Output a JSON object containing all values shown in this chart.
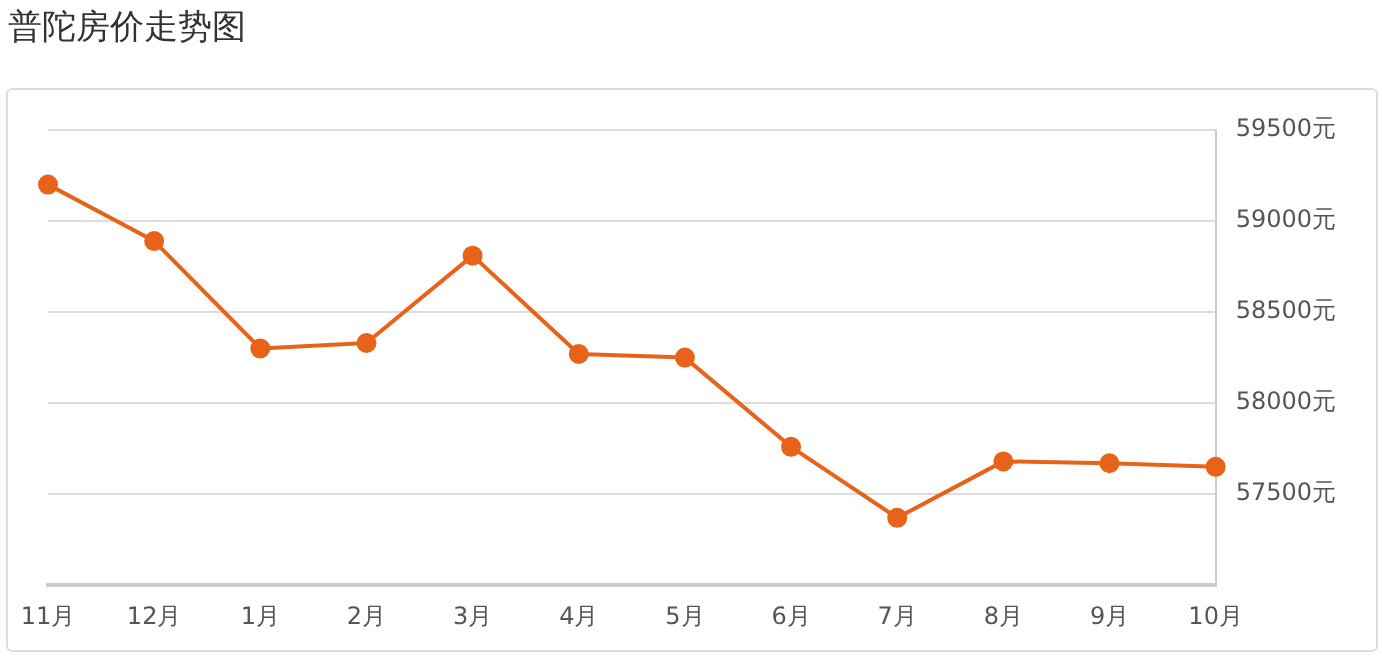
{
  "chart_data": {
    "type": "line",
    "title": "普陀房价走势图",
    "categories": [
      "11月",
      "12月",
      "1月",
      "2月",
      "3月",
      "4月",
      "5月",
      "6月",
      "7月",
      "8月",
      "9月",
      "10月"
    ],
    "series": [
      {
        "color": "#e8631a",
        "values": [
          59200,
          58890,
          58300,
          58330,
          58810,
          58270,
          58250,
          57760,
          57370,
          57680,
          57670,
          57650
        ]
      }
    ],
    "ylim": [
      57000,
      59500
    ],
    "yticks": [
      {
        "value": 57000,
        "label": null
      },
      {
        "value": 57500,
        "label": "57500元"
      },
      {
        "value": 58000,
        "label": "58000元"
      },
      {
        "value": 58500,
        "label": "58500元"
      },
      {
        "value": 59000,
        "label": "59000元"
      },
      {
        "value": 59500,
        "label": "59500元"
      }
    ],
    "grid": "y",
    "legend": false,
    "marker": "circle",
    "line_style": "solid"
  }
}
